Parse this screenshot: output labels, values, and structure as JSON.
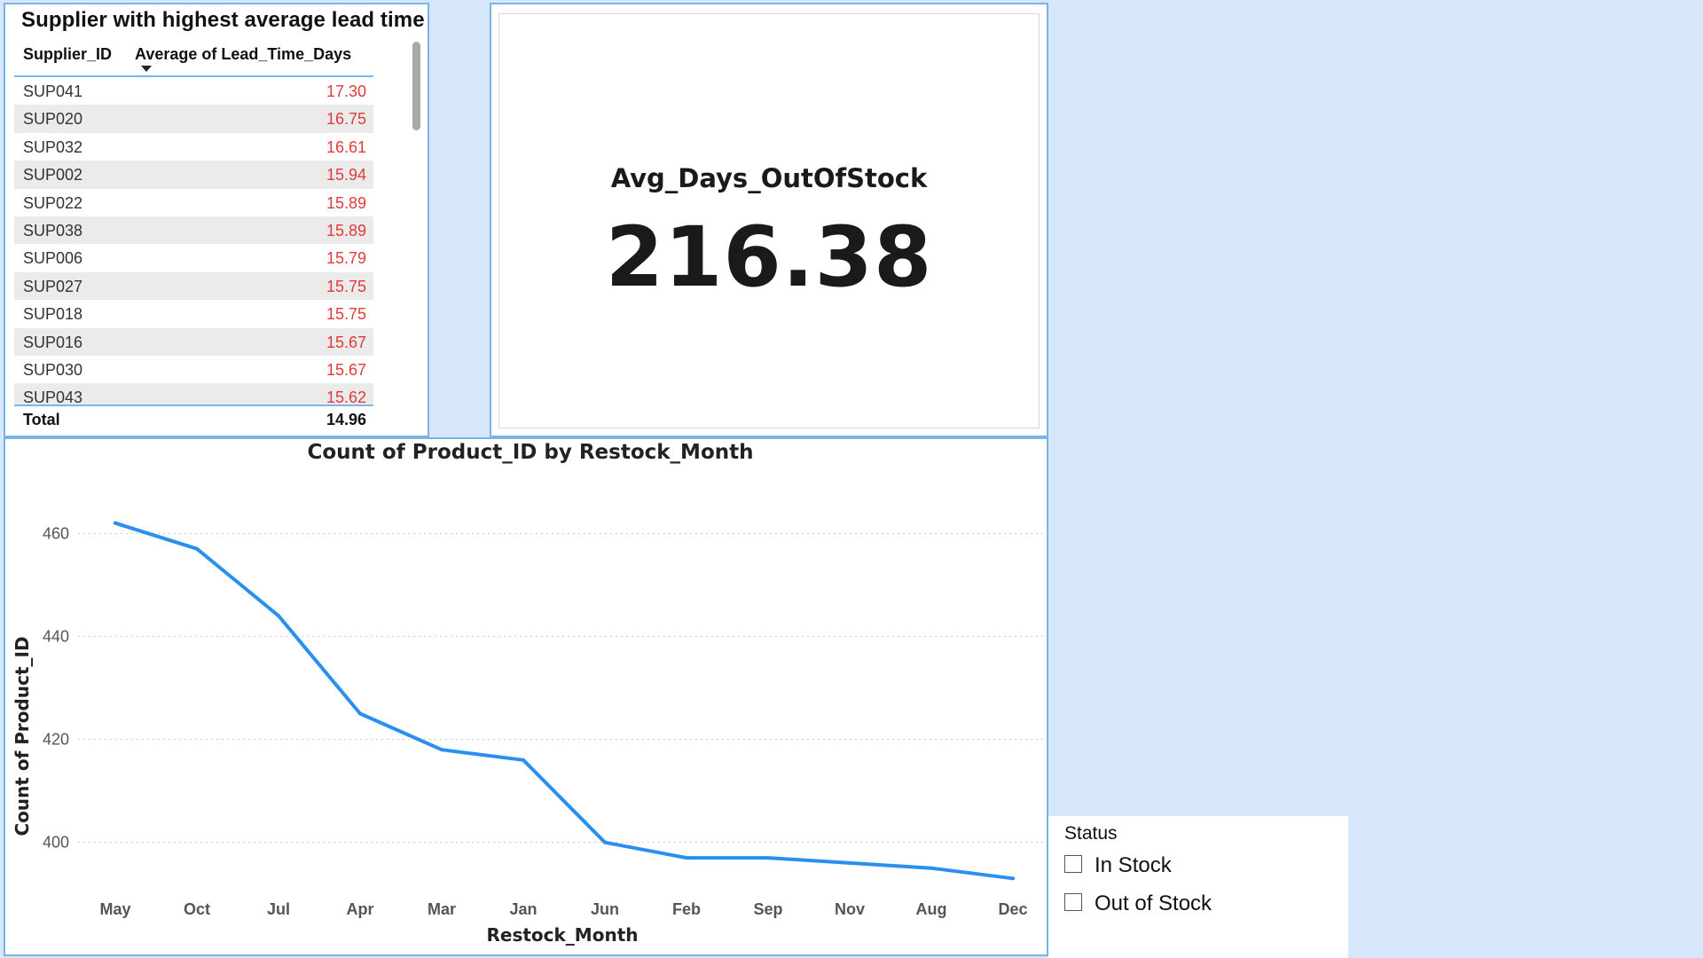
{
  "table": {
    "title": "Supplier with highest average lead time",
    "col_supplier": "Supplier_ID",
    "col_lead": "Average of Lead_Time_Days",
    "value_color": "#e03a3a",
    "rows": [
      {
        "id": "SUP041",
        "value": "17.30"
      },
      {
        "id": "SUP020",
        "value": "16.75"
      },
      {
        "id": "SUP032",
        "value": "16.61"
      },
      {
        "id": "SUP002",
        "value": "15.94"
      },
      {
        "id": "SUP022",
        "value": "15.89"
      },
      {
        "id": "SUP038",
        "value": "15.89"
      },
      {
        "id": "SUP006",
        "value": "15.79"
      },
      {
        "id": "SUP027",
        "value": "15.75"
      },
      {
        "id": "SUP018",
        "value": "15.75"
      },
      {
        "id": "SUP016",
        "value": "15.67"
      },
      {
        "id": "SUP030",
        "value": "15.67"
      },
      {
        "id": "SUP043",
        "value": "15.62"
      }
    ],
    "total_label": "Total",
    "total_value": "14.96"
  },
  "card": {
    "label": "Avg_Days_OutOfStock",
    "value": "216.38"
  },
  "chart_data": {
    "type": "line",
    "title": "Count of Product_ID by Restock_Month",
    "xlabel": "Restock_Month",
    "ylabel": "Count of Product_ID",
    "categories": [
      "May",
      "Oct",
      "Jul",
      "Apr",
      "Mar",
      "Jan",
      "Jun",
      "Feb",
      "Sep",
      "Nov",
      "Aug",
      "Dec"
    ],
    "series": [
      {
        "values": [
          462,
          457,
          444,
          425,
          418,
          416,
          400,
          397,
          397,
          396,
          395,
          393
        ]
      }
    ],
    "yticks": [
      400,
      420,
      440,
      460
    ],
    "ylim": [
      391.5,
      463.5
    ],
    "grid": true,
    "line_color": "#2a8fee"
  },
  "slicer": {
    "title": "Status",
    "items": [
      "In Stock",
      "Out of Stock"
    ]
  },
  "colors": {
    "background": "#d6e7fb",
    "border": "#79b4e3"
  }
}
